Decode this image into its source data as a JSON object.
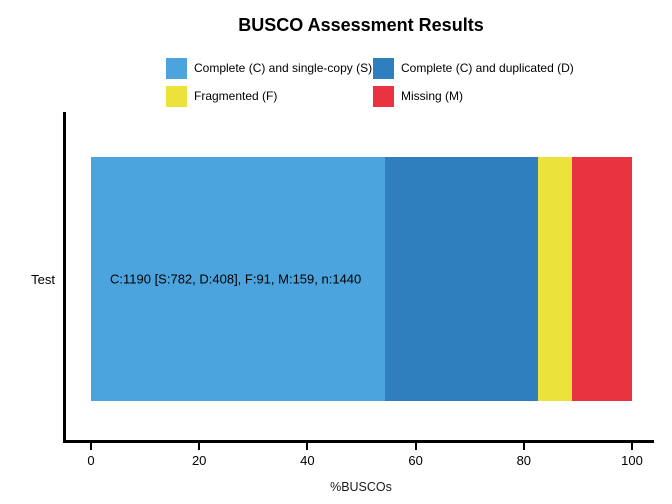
{
  "chart_data": {
    "type": "bar",
    "orientation": "horizontal",
    "title": "BUSCO Assessment Results",
    "xlabel": "%BUSCOs",
    "xlim": [
      0,
      100
    ],
    "x_ticks": [
      0,
      20,
      40,
      60,
      80,
      100
    ],
    "grid": false,
    "legend_position": "top-center",
    "categories": [
      "Test"
    ],
    "series": [
      {
        "name": "Complete (C) and single-copy (S)",
        "key": "complete-single-copy",
        "count": 782,
        "values": [
          54.31
        ],
        "color": "#4BA4DD"
      },
      {
        "name": "Complete (C) and duplicated (D)",
        "key": "complete-duplicated",
        "count": 408,
        "values": [
          28.33
        ],
        "color": "#2F7FBE"
      },
      {
        "name": "Fragmented (F)",
        "key": "fragmented",
        "count": 91,
        "values": [
          6.32
        ],
        "color": "#ECE23C"
      },
      {
        "name": "Missing (M)",
        "key": "missing",
        "count": 159,
        "values": [
          11.04
        ],
        "color": "#E93340"
      }
    ],
    "counts": {
      "C": 1190,
      "S": 782,
      "D": 408,
      "F": 91,
      "M": 159,
      "n": 1440
    },
    "bar_annotation": "C:1190 [S:782, D:408], F:91, M:159, n:1440"
  }
}
